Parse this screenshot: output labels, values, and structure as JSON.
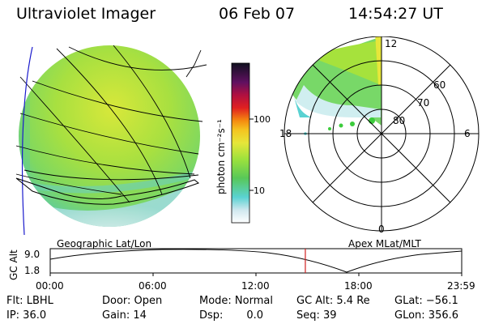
{
  "header": {
    "title": "Ultraviolet Imager",
    "date": "06 Feb 07",
    "time": "14:54:27 UT"
  },
  "colorbar": {
    "label": "photon cm⁻²s⁻¹",
    "ticks": [
      "100",
      "10"
    ]
  },
  "polar_plot": {
    "mlt_labels": {
      "top": "12",
      "left": "18",
      "right": "6",
      "bottom": "0"
    },
    "lat_labels": [
      "60",
      "70",
      "80"
    ]
  },
  "panel_labels": {
    "left": "Geographic Lat/Lon",
    "right": "Apex MLat/MLT"
  },
  "altitude_plot": {
    "ylabel": "GC Alt",
    "yticks": [
      "9.0",
      "1.8"
    ],
    "xticks": [
      "00:00",
      "06:00",
      "12:00",
      "18:00",
      "23:59"
    ],
    "current_time_marker_fraction": 0.62
  },
  "info": {
    "flt": "Flt: LBHL",
    "ip": "IP: 36.0",
    "door": "Door: Open",
    "gain": "Gain: 14",
    "mode": "Mode: Normal",
    "dsp": "Dsp:       0.0",
    "gc_alt": "GC Alt: 5.4 Re",
    "seq": "Seq: 39",
    "glat": "GLat: −56.1",
    "glon": "GLon: 356.6"
  },
  "colors": {
    "marker": "#d02020",
    "axis": "#000000",
    "orbit_track": "#1a1acc"
  }
}
